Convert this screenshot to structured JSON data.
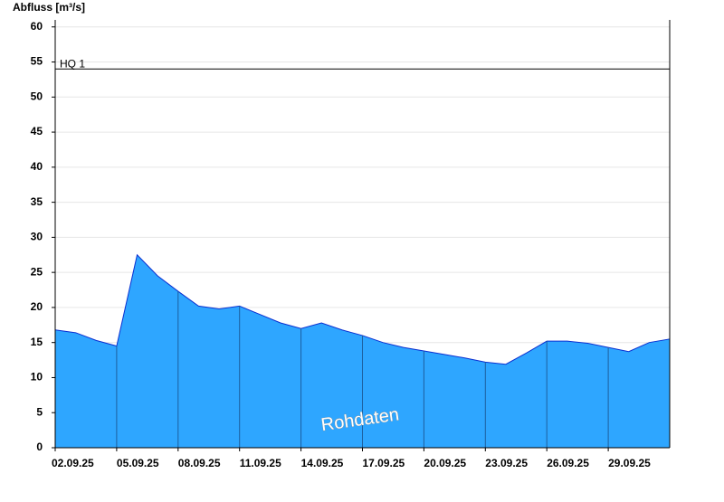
{
  "chart_data": {
    "type": "area",
    "title": "Abfluss [m³/s]",
    "x": [
      "02.09.25",
      "03.09.25",
      "04.09.25",
      "05.09.25",
      "06.09.25",
      "07.09.25",
      "08.09.25",
      "09.09.25",
      "10.09.25",
      "11.09.25",
      "12.09.25",
      "13.09.25",
      "14.09.25",
      "15.09.25",
      "16.09.25",
      "17.09.25",
      "18.09.25",
      "19.09.25",
      "20.09.25",
      "21.09.25",
      "22.09.25",
      "23.09.25",
      "24.09.25",
      "25.09.25",
      "26.09.25",
      "27.09.25",
      "28.09.25",
      "29.09.25",
      "30.09.25",
      "01.10.25",
      "02.10.25"
    ],
    "series": [
      {
        "name": "Rohdaten",
        "color": "#2ea6ff",
        "values": [
          16.8,
          16.4,
          15.3,
          14.5,
          27.5,
          24.5,
          22.3,
          20.2,
          19.8,
          20.2,
          19.0,
          17.8,
          17.0,
          17.8,
          16.8,
          16.0,
          15.0,
          14.3,
          13.8,
          13.3,
          12.8,
          12.2,
          11.9,
          13.5,
          15.2,
          15.2,
          14.9,
          14.3,
          13.7,
          15.0,
          15.5
        ]
      }
    ],
    "xticks": [
      "02.09.25",
      "05.09.25",
      "08.09.25",
      "11.09.25",
      "14.09.25",
      "17.09.25",
      "20.09.25",
      "23.09.25",
      "26.09.25",
      "29.09.25"
    ],
    "ylim": [
      0,
      61
    ],
    "yticks": [
      0,
      5,
      10,
      15,
      20,
      25,
      30,
      35,
      40,
      45,
      50,
      55,
      60
    ],
    "grid": true,
    "reference_line": {
      "label": "HQ 1",
      "value": 54
    }
  }
}
